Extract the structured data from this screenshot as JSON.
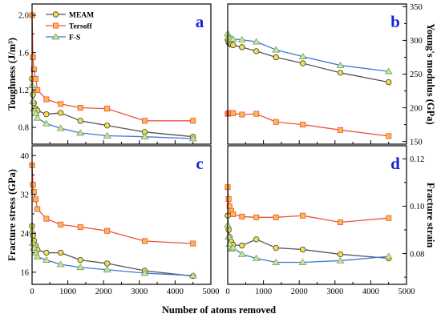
{
  "chart_data": {
    "type": "line",
    "xlabel": "Number of atoms removed",
    "xlim": [
      0,
      5000
    ],
    "xtick_labels": [
      "0",
      "1000",
      "2000",
      "3000",
      "4000",
      "5000"
    ],
    "x": [
      0,
      25,
      50,
      100,
      150,
      400,
      800,
      1350,
      2100,
      3150,
      4500
    ],
    "legend": {
      "panel": "a",
      "placement": "top-left"
    },
    "label_color": "#1a22d8",
    "series_styles": [
      {
        "marker": "circle",
        "line": "#555555",
        "fill": "#f1e04b",
        "edge": "#3d3d3d"
      },
      {
        "marker": "square",
        "line": "#f0533f",
        "fill": "#ffb84d",
        "edge": "#e0513a"
      },
      {
        "marker": "triangle",
        "line": "#3a7ad6",
        "fill": "#c4e79a",
        "edge": "#7d9c58"
      }
    ],
    "panels": [
      {
        "label": "a",
        "ylabel": "Toughness (J/m³)",
        "ylim": [
          0.62,
          2.12
        ],
        "ytick_labels": [
          "0.8",
          "1.2",
          "1.6",
          "2.0"
        ],
        "series": [
          {
            "name": "MEAM",
            "values": [
              1.32,
              1.15,
              1.06,
              1.0,
              0.98,
              0.94,
              0.955,
              0.87,
              0.82,
              0.75,
              0.7
            ]
          },
          {
            "name": "Tersoff",
            "values": [
              2.0,
              1.55,
              1.42,
              1.32,
              1.2,
              1.1,
              1.05,
              1.01,
              1.0,
              0.87,
              0.87
            ]
          },
          {
            "name": "F-S",
            "values": [
              1.25,
              1.08,
              1.0,
              0.95,
              0.9,
              0.84,
              0.79,
              0.74,
              0.71,
              0.7,
              0.68
            ]
          }
        ]
      },
      {
        "label": "b",
        "ylabel": "Young's modulus (GPa)",
        "ylim": [
          146,
          354
        ],
        "ytick_labels": [
          "150",
          "200",
          "250",
          "300",
          "350"
        ],
        "series": [
          {
            "name": "MEAM",
            "values": [
              301,
              297,
              295,
              294,
              293,
              290,
              284,
              275,
              266,
              252,
              238
            ]
          },
          {
            "name": "Tersoff",
            "values": [
              191,
              192,
              192,
              192,
              192,
              190,
              191,
              179,
              175,
              167,
              158
            ]
          },
          {
            "name": "F-S",
            "values": [
              310,
              305,
              303,
              302,
              302,
              301,
              298,
              286,
              276,
              263,
              254
            ]
          }
        ]
      },
      {
        "label": "c",
        "ylabel": "Fracture stress (GPa)",
        "ylim": [
          13.5,
          42
        ],
        "ytick_labels": [
          "16",
          "24",
          "32",
          "40"
        ],
        "series": [
          {
            "name": "MEAM",
            "values": [
              25.5,
              23.5,
              22.5,
              21.5,
              20.6,
              20.0,
              20.0,
              18.5,
              17.8,
              16.3,
              15.2
            ]
          },
          {
            "name": "Tersoff",
            "values": [
              38.0,
              34.0,
              32.5,
              31.0,
              29.0,
              27.0,
              25.8,
              25.3,
              24.5,
              22.4,
              21.9
            ]
          },
          {
            "name": "F-S",
            "values": [
              24.5,
              22.0,
              21.0,
              20.0,
              19.2,
              18.5,
              17.6,
              17.0,
              16.5,
              15.8,
              15.3
            ]
          }
        ]
      },
      {
        "label": "d",
        "ylabel": "Fracture strain",
        "ylim": [
          0.067,
          0.1255
        ],
        "ytick_labels": [
          "0.08",
          "0.10",
          "0.12"
        ],
        "series": [
          {
            "name": "MEAM",
            "values": [
              0.096,
              0.09,
              0.087,
              0.085,
              0.0837,
              0.0834,
              0.086,
              0.0824,
              0.0817,
              0.0797,
              0.078
            ]
          },
          {
            "name": "Tersoff",
            "values": [
              0.108,
              0.103,
              0.1,
              0.098,
              0.0966,
              0.0956,
              0.0953,
              0.0953,
              0.096,
              0.0932,
              0.095
            ]
          },
          {
            "name": "F-S",
            "values": [
              0.092,
              0.087,
              0.084,
              0.082,
              0.0825,
              0.0797,
              0.078,
              0.0763,
              0.0763,
              0.077,
              0.0788
            ]
          }
        ]
      }
    ]
  }
}
